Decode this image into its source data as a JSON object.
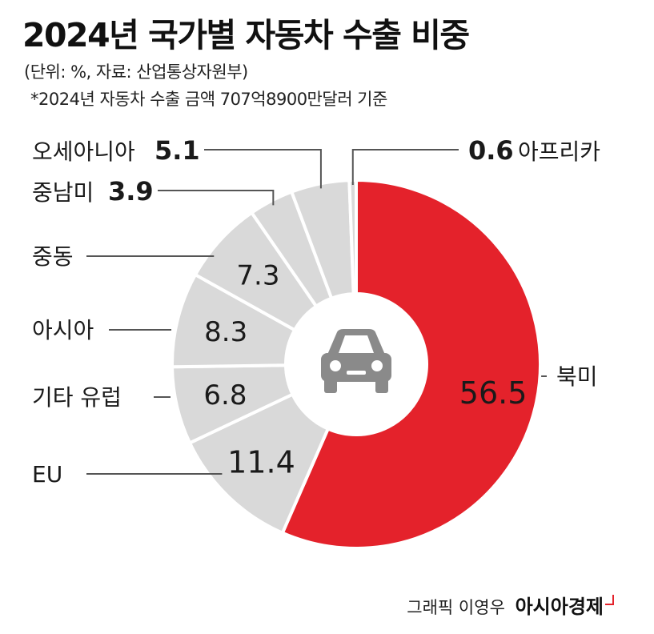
{
  "header": {
    "title": "2024년 국가별 자동차 수출 비중",
    "unit_source": "(단위: %, 자료: 산업통상자원부)",
    "note": "*2024년 자동차 수출 금액 707억8900만달러 기준"
  },
  "chart_data": {
    "type": "pie",
    "variant": "donut",
    "title": "2024년 국가별 자동차 수출 비중",
    "unit": "%",
    "slices": [
      {
        "name": "북미",
        "value": 56.5,
        "color": "#e4222b"
      },
      {
        "name": "EU",
        "value": 11.4,
        "color": "#d9d9d9"
      },
      {
        "name": "기타 유럽",
        "value": 6.8,
        "color": "#d9d9d9"
      },
      {
        "name": "아시아",
        "value": 8.3,
        "color": "#d9d9d9"
      },
      {
        "name": "중동",
        "value": 7.3,
        "color": "#d9d9d9"
      },
      {
        "name": "중남미",
        "value": 3.9,
        "color": "#d9d9d9"
      },
      {
        "name": "오세아니아",
        "value": 5.1,
        "color": "#d9d9d9"
      },
      {
        "name": "아프리카",
        "value": 0.6,
        "color": "#d9d9d9"
      }
    ],
    "center_icon": "car-icon"
  },
  "credit": {
    "graphic_by": "그래픽 이영우",
    "brand": "아시아경제"
  },
  "colors": {
    "accent": "#e4222b",
    "slice_gray": "#d9d9d9",
    "center_circle": "#ffffff",
    "icon": "#8a8a8a",
    "leader": "#555555"
  }
}
